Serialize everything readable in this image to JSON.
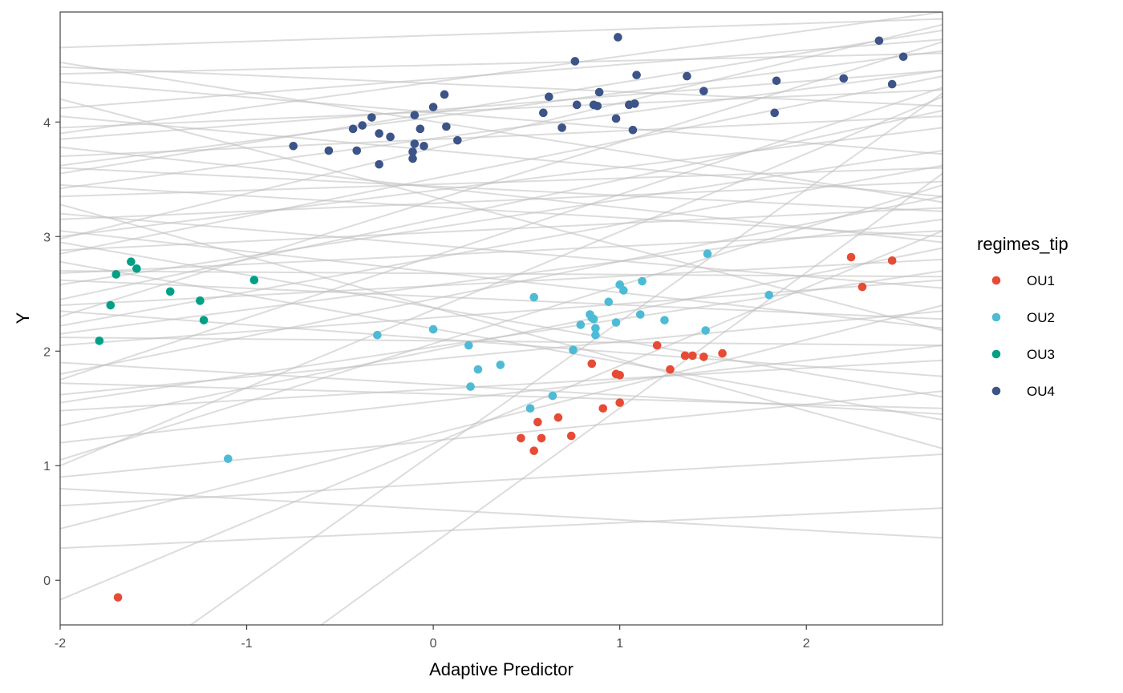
{
  "chart_data": {
    "type": "scatter",
    "title": "",
    "xlabel": "Adaptive Predictor",
    "ylabel": "Y",
    "xlim": [
      -2.0,
      2.73
    ],
    "ylim": [
      -0.39,
      4.96
    ],
    "x_ticks": [
      -2,
      -1,
      0,
      1,
      2
    ],
    "x_tick_labels": [
      "-2",
      "-1",
      "0",
      "1",
      "2"
    ],
    "y_ticks": [
      0,
      1,
      2,
      3,
      4
    ],
    "y_tick_labels": [
      "0",
      "1",
      "2",
      "3",
      "4"
    ],
    "grid": false,
    "legend": {
      "title": "regimes_tip",
      "position": "right",
      "entries": [
        {
          "label": "OU1",
          "color": "#E64B35"
        },
        {
          "label": "OU2",
          "color": "#4DBBD5"
        },
        {
          "label": "OU3",
          "color": "#00A087"
        },
        {
          "label": "OU4",
          "color": "#3C5488"
        }
      ]
    },
    "series": [
      {
        "name": "OU1",
        "color": "#E64B35",
        "points": [
          [
            -1.69,
            -0.15
          ],
          [
            0.47,
            1.24
          ],
          [
            0.54,
            1.13
          ],
          [
            0.56,
            1.38
          ],
          [
            0.58,
            1.24
          ],
          [
            0.67,
            1.42
          ],
          [
            0.74,
            1.26
          ],
          [
            0.85,
            1.89
          ],
          [
            0.91,
            1.5
          ],
          [
            0.98,
            1.8
          ],
          [
            1.0,
            1.79
          ],
          [
            1.0,
            1.55
          ],
          [
            1.2,
            2.05
          ],
          [
            1.27,
            1.84
          ],
          [
            1.35,
            1.96
          ],
          [
            1.39,
            1.96
          ],
          [
            1.45,
            1.95
          ],
          [
            1.55,
            1.98
          ],
          [
            2.24,
            2.82
          ],
          [
            2.3,
            2.56
          ],
          [
            2.46,
            2.79
          ]
        ]
      },
      {
        "name": "OU2",
        "color": "#4DBBD5",
        "points": [
          [
            -1.1,
            1.06
          ],
          [
            -0.3,
            2.14
          ],
          [
            0.0,
            2.19
          ],
          [
            0.19,
            2.05
          ],
          [
            0.2,
            1.69
          ],
          [
            0.24,
            1.84
          ],
          [
            0.36,
            1.88
          ],
          [
            0.52,
            1.5
          ],
          [
            0.54,
            2.47
          ],
          [
            0.64,
            1.61
          ],
          [
            0.75,
            2.01
          ],
          [
            0.79,
            2.23
          ],
          [
            0.84,
            2.32
          ],
          [
            0.85,
            2.29
          ],
          [
            0.86,
            2.28
          ],
          [
            0.87,
            2.2
          ],
          [
            0.87,
            2.14
          ],
          [
            0.94,
            2.43
          ],
          [
            0.98,
            2.25
          ],
          [
            1.0,
            2.58
          ],
          [
            1.02,
            2.53
          ],
          [
            1.11,
            2.32
          ],
          [
            1.12,
            2.61
          ],
          [
            1.24,
            2.27
          ],
          [
            1.46,
            2.18
          ],
          [
            1.47,
            2.85
          ],
          [
            1.8,
            2.49
          ]
        ]
      },
      {
        "name": "OU3",
        "color": "#00A087",
        "points": [
          [
            -1.79,
            2.09
          ],
          [
            -1.73,
            2.4
          ],
          [
            -1.7,
            2.67
          ],
          [
            -1.62,
            2.78
          ],
          [
            -1.59,
            2.72
          ],
          [
            -1.41,
            2.52
          ],
          [
            -1.25,
            2.44
          ],
          [
            -1.23,
            2.27
          ],
          [
            -0.96,
            2.62
          ]
        ]
      },
      {
        "name": "OU4",
        "color": "#3C5488",
        "points": [
          [
            -0.75,
            3.79
          ],
          [
            -0.56,
            3.75
          ],
          [
            -0.43,
            3.94
          ],
          [
            -0.41,
            3.75
          ],
          [
            -0.38,
            3.97
          ],
          [
            -0.33,
            4.04
          ],
          [
            -0.29,
            3.9
          ],
          [
            -0.29,
            3.63
          ],
          [
            -0.23,
            3.87
          ],
          [
            -0.11,
            3.74
          ],
          [
            -0.11,
            3.68
          ],
          [
            -0.1,
            3.81
          ],
          [
            -0.1,
            4.06
          ],
          [
            -0.07,
            3.94
          ],
          [
            -0.05,
            3.79
          ],
          [
            0.0,
            4.13
          ],
          [
            0.06,
            4.24
          ],
          [
            0.07,
            3.96
          ],
          [
            0.13,
            3.84
          ],
          [
            0.59,
            4.08
          ],
          [
            0.62,
            4.22
          ],
          [
            0.69,
            3.95
          ],
          [
            0.76,
            4.53
          ],
          [
            0.77,
            4.15
          ],
          [
            0.86,
            4.15
          ],
          [
            0.88,
            4.14
          ],
          [
            0.89,
            4.26
          ],
          [
            0.98,
            4.03
          ],
          [
            0.99,
            4.74
          ],
          [
            1.05,
            4.15
          ],
          [
            1.07,
            3.93
          ],
          [
            1.08,
            4.16
          ],
          [
            1.09,
            4.41
          ],
          [
            1.36,
            4.4
          ],
          [
            1.45,
            4.27
          ],
          [
            1.83,
            4.08
          ],
          [
            1.84,
            4.36
          ],
          [
            2.2,
            4.38
          ],
          [
            2.39,
            4.71
          ],
          [
            2.46,
            4.33
          ],
          [
            2.52,
            4.57
          ]
        ]
      }
    ],
    "reference_lines": {
      "color": "#bfbfbf",
      "lines": [
        [
          -2,
          3.9,
          2.73,
          4.96
        ],
        [
          -2,
          2.85,
          2.73,
          4.4
        ],
        [
          -2,
          3.35,
          2.73,
          3.6
        ],
        [
          -2,
          2.45,
          2.73,
          4.1
        ],
        [
          -2,
          1.75,
          2.73,
          4.3
        ],
        [
          -2,
          4.42,
          2.73,
          4.6
        ],
        [
          -2,
          3.05,
          2.73,
          2.2
        ],
        [
          -2,
          2.15,
          2.73,
          3.15
        ],
        [
          -2,
          1.05,
          2.73,
          3.45
        ],
        [
          -2,
          3.7,
          2.73,
          4.05
        ],
        [
          -2,
          2.7,
          2.73,
          2.65
        ],
        [
          -2,
          1.9,
          2.73,
          1.45
        ],
        [
          -2,
          1.35,
          2.73,
          2.9
        ],
        [
          -2,
          0.9,
          2.73,
          1.65
        ],
        [
          -2,
          0.65,
          2.73,
          1.1
        ],
        [
          -2,
          0.28,
          2.73,
          0.63
        ],
        [
          -2,
          -0.17,
          2.73,
          3.05
        ],
        [
          -2,
          4.05,
          2.73,
          3.35
        ],
        [
          -2,
          3.2,
          2.73,
          2.55
        ],
        [
          -2,
          4.52,
          2.73,
          3.3
        ],
        [
          -2,
          2.95,
          2.73,
          1.6
        ],
        [
          -2,
          2.35,
          2.73,
          1.78
        ],
        [
          -2,
          1.62,
          2.73,
          2.35
        ],
        [
          -2,
          3.55,
          2.73,
          4.8
        ],
        [
          -2,
          2.58,
          2.73,
          3.75
        ],
        [
          -2,
          1.2,
          2.73,
          2.05
        ],
        [
          -2,
          3.78,
          2.73,
          2.95
        ],
        [
          -2,
          3.42,
          2.73,
          4.45
        ],
        [
          -2,
          2.05,
          2.73,
          2.62
        ],
        [
          -2,
          4.2,
          2.73,
          2.18
        ],
        [
          -2,
          3.0,
          2.73,
          3.95
        ],
        [
          -2,
          2.22,
          2.73,
          3.62
        ],
        [
          -1.3,
          -0.39,
          2.73,
          4.25
        ],
        [
          -0.6,
          -0.39,
          2.73,
          3.55
        ],
        [
          -2,
          4.48,
          2.73,
          4.14
        ],
        [
          -2,
          3.62,
          2.73,
          4.62
        ],
        [
          -2,
          4.65,
          2.73,
          4.9
        ],
        [
          -2,
          2.62,
          2.73,
          2.28
        ],
        [
          -2,
          2.88,
          2.73,
          3.25
        ],
        [
          -2,
          1.48,
          2.73,
          1.92
        ],
        [
          -2,
          3.28,
          2.73,
          1.15
        ],
        [
          -2,
          0.45,
          2.73,
          2.4
        ],
        [
          -2,
          1.0,
          2.73,
          4.22
        ],
        [
          -2,
          4.35,
          2.73,
          3.72
        ],
        [
          -2,
          3.15,
          2.73,
          3.48
        ],
        [
          -2,
          2.4,
          2.73,
          2.8
        ],
        [
          -2,
          3.85,
          2.73,
          4.45
        ],
        [
          -2,
          2.78,
          2.73,
          1.4
        ],
        [
          -2,
          1.8,
          2.73,
          3.35
        ],
        [
          -2,
          3.95,
          2.73,
          4.28
        ],
        [
          -2,
          2.3,
          2.73,
          4.7
        ],
        [
          -2,
          1.55,
          2.73,
          2.7
        ],
        [
          -2,
          3.45,
          2.73,
          3.0
        ],
        [
          -2,
          2.12,
          2.73,
          2.05
        ],
        [
          -2,
          0.8,
          2.73,
          0.37
        ],
        [
          -2,
          4.12,
          2.73,
          4.72
        ],
        [
          -2,
          3.6,
          2.73,
          3.22
        ],
        [
          -2,
          2.98,
          2.73,
          4.85
        ],
        [
          -2,
          1.72,
          2.73,
          1.5
        ],
        [
          -2,
          2.68,
          2.73,
          3.05
        ]
      ]
    }
  }
}
